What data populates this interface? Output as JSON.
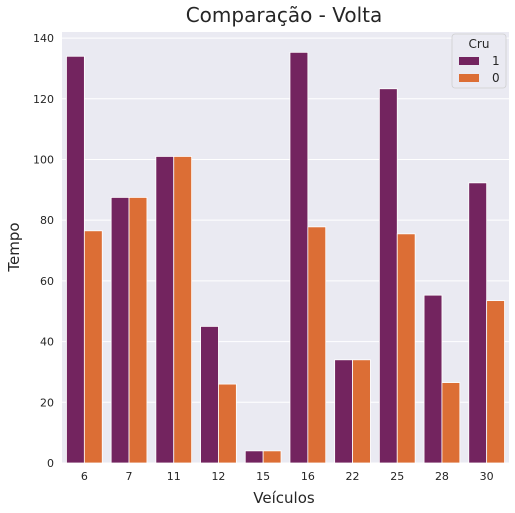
{
  "chart_data": {
    "type": "bar",
    "title": "Comparação - Volta",
    "xlabel": "Veículos",
    "ylabel": "Tempo",
    "categories": [
      "6",
      "7",
      "11",
      "12",
      "15",
      "16",
      "22",
      "25",
      "28",
      "30"
    ],
    "series": [
      {
        "name": "1",
        "color": "#73245f",
        "values": [
          134,
          87.5,
          101,
          45,
          4,
          135.3,
          34,
          123.3,
          55.3,
          92.3
        ]
      },
      {
        "name": "0",
        "color": "#dc6e35",
        "values": [
          76.5,
          87.5,
          101,
          26,
          4,
          77.8,
          34,
          75.5,
          26.5,
          53.5
        ]
      }
    ],
    "ylim": [
      0,
      142
    ],
    "yticks": [
      0,
      20,
      40,
      60,
      80,
      100,
      120,
      140
    ],
    "grid": true,
    "legend": {
      "title": "Cru",
      "placement": "top-right"
    }
  }
}
